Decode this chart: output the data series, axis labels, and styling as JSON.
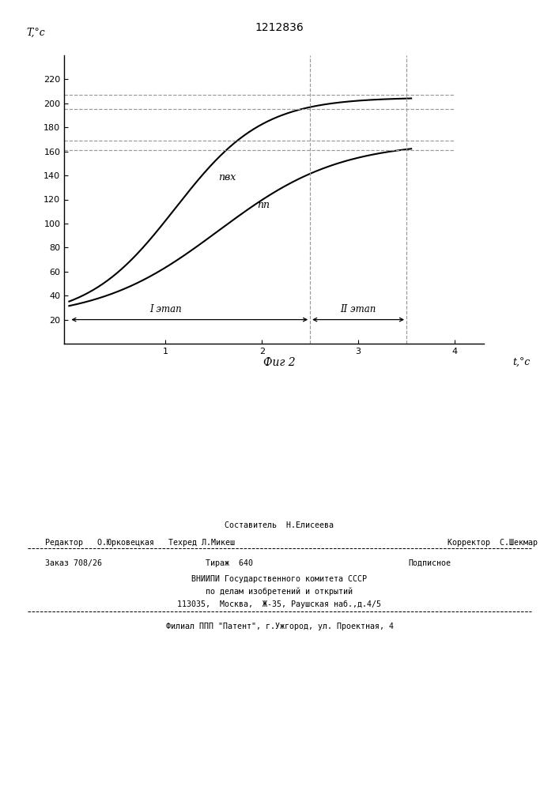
{
  "title": "1212836",
  "fig_label": "Фиг 2",
  "xlabel": "t,°c",
  "ylabel": "T,°c",
  "background_color": "#ffffff",
  "line_color": "#000000",
  "dashed_color": "#888888",
  "xlim": [
    -0.05,
    4.3
  ],
  "ylim": [
    0,
    240
  ],
  "xticks": [
    1,
    2,
    3,
    4
  ],
  "yticks": [
    20,
    40,
    60,
    80,
    100,
    120,
    140,
    160,
    180,
    200,
    220
  ],
  "pvkh_label": "пвх",
  "pp_label": "пп",
  "stage1_label": "I этап",
  "stage2_label": "ІІ этап",
  "stage_boundary_x": 2.5,
  "stage_end_x": 3.5,
  "dashed_lines_pvkh": [
    195,
    207
  ],
  "dashed_lines_pp": [
    161,
    169
  ],
  "bottom_texts": [
    [
      0.5,
      "Составитель  Н.Елисеева",
      "center"
    ],
    [
      0.08,
      "Редактор   О.Юрковецкая   Техред Л.Микеш",
      "left"
    ],
    [
      0.78,
      "Корректор  С.Шекмар",
      "left"
    ]
  ],
  "bottom_texts2": [
    [
      0.08,
      "Заказ 708/26",
      "left"
    ],
    [
      0.38,
      "Тираж  640",
      "center"
    ],
    [
      0.72,
      "Подписное",
      "left"
    ]
  ],
  "bottom_texts3": [
    "ВНИИПИ Государственного комитета СССР",
    "по делам изобретений и открытий",
    "113035,  Москва,  Ж-35, Раушская наб.,д.4/5"
  ],
  "bottom_patent": "Филиал ППП \"Патент\", г.Ужгород, ул. Проектная, 4"
}
